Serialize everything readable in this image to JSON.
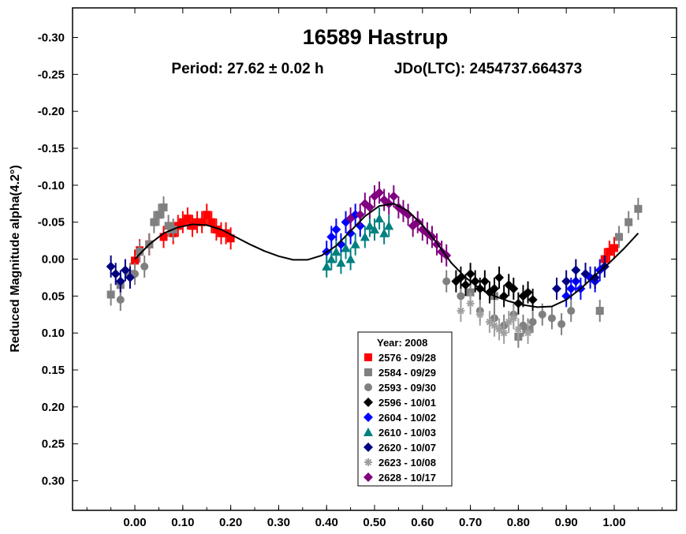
{
  "chart_data": {
    "type": "scatter",
    "title": "16589 Hastrup",
    "subtitle_period": "Period: 27.62 ± 0.02 h",
    "subtitle_epoch": "JDo(LTC): 2454737.664373",
    "xlabel": "",
    "ylabel": "Reduced Magnitude alpha(4.2°)",
    "xlim": [
      -0.13,
      1.13
    ],
    "ylim": [
      -0.34,
      0.34
    ],
    "y_inverted": true,
    "x_ticks": [
      0.0,
      0.1,
      0.2,
      0.3,
      0.4,
      0.5,
      0.6,
      0.7,
      0.8,
      0.9,
      1.0
    ],
    "x_tick_labels": [
      "0.00",
      "0.10",
      "0.20",
      "0.30",
      "0.40",
      "0.50",
      "0.60",
      "0.70",
      "0.80",
      "0.90",
      "1.00"
    ],
    "y_ticks": [
      -0.3,
      -0.25,
      -0.2,
      -0.15,
      -0.1,
      -0.05,
      0.0,
      0.05,
      0.1,
      0.15,
      0.2,
      0.25,
      0.3
    ],
    "y_tick_labels": [
      "-0.30",
      "-0.25",
      "-0.20",
      "-0.15",
      "-0.10",
      "-0.05",
      "0.00",
      "0.05",
      "0.10",
      "0.15",
      "0.20",
      "0.25",
      "0.30"
    ],
    "grid": false,
    "legend": {
      "placement": "bottom-center",
      "title": "Year: 2008",
      "entries": [
        {
          "label": "2576 - 09/28",
          "marker": "square",
          "color": "#ff0000"
        },
        {
          "label": "2584 - 09/29",
          "marker": "square",
          "color": "#808080"
        },
        {
          "label": "2593 - 09/30",
          "marker": "circle",
          "color": "#808080"
        },
        {
          "label": "2596 - 10/01",
          "marker": "diamond",
          "color": "#000000"
        },
        {
          "label": "2604 - 10/02",
          "marker": "diamond",
          "color": "#0000ff"
        },
        {
          "label": "2610 - 10/03",
          "marker": "triangle",
          "color": "#008080"
        },
        {
          "label": "2620 - 10/07",
          "marker": "diamond",
          "color": "#000080"
        },
        {
          "label": "2623 - 10/08",
          "marker": "asterisk",
          "color": "#a0a0a0"
        },
        {
          "label": "2628 - 10/17",
          "marker": "diamond",
          "color": "#800080"
        }
      ]
    },
    "fit_curve": {
      "color": "#000000",
      "points": [
        [
          0.0,
          0.0
        ],
        [
          0.03,
          -0.02
        ],
        [
          0.06,
          -0.035
        ],
        [
          0.09,
          -0.043
        ],
        [
          0.12,
          -0.047
        ],
        [
          0.15,
          -0.046
        ],
        [
          0.18,
          -0.04
        ],
        [
          0.21,
          -0.03
        ],
        [
          0.24,
          -0.02
        ],
        [
          0.27,
          -0.011
        ],
        [
          0.3,
          -0.004
        ],
        [
          0.33,
          0.001
        ],
        [
          0.36,
          0.001
        ],
        [
          0.39,
          -0.005
        ],
        [
          0.42,
          -0.018
        ],
        [
          0.45,
          -0.038
        ],
        [
          0.48,
          -0.058
        ],
        [
          0.51,
          -0.072
        ],
        [
          0.54,
          -0.075
        ],
        [
          0.57,
          -0.065
        ],
        [
          0.6,
          -0.046
        ],
        [
          0.63,
          -0.022
        ],
        [
          0.66,
          0.005
        ],
        [
          0.69,
          0.025
        ],
        [
          0.72,
          0.04
        ],
        [
          0.75,
          0.05
        ],
        [
          0.78,
          0.057
        ],
        [
          0.81,
          0.062
        ],
        [
          0.84,
          0.065
        ],
        [
          0.87,
          0.064
        ],
        [
          0.9,
          0.055
        ],
        [
          0.93,
          0.04
        ],
        [
          0.96,
          0.022
        ],
        [
          0.99,
          0.005
        ],
        [
          1.02,
          -0.014
        ],
        [
          1.05,
          -0.035
        ]
      ]
    },
    "series": [
      {
        "name": "2576 - 09/28",
        "marker": "square",
        "color": "#ff0000",
        "x": [
          0.0,
          0.01,
          0.03,
          0.06,
          0.08,
          0.09,
          0.1,
          0.11,
          0.12,
          0.13,
          0.14,
          0.15,
          0.16,
          0.17,
          0.18,
          0.19,
          0.2,
          0.98,
          0.99,
          1.0
        ],
        "y": [
          0.002,
          -0.012,
          -0.02,
          -0.03,
          -0.035,
          -0.045,
          -0.05,
          -0.055,
          -0.045,
          -0.05,
          -0.05,
          -0.06,
          -0.05,
          -0.04,
          -0.035,
          -0.035,
          -0.028,
          0.0,
          -0.01,
          -0.015
        ]
      },
      {
        "name": "2584 - 09/29",
        "marker": "square",
        "color": "#808080",
        "x": [
          -0.05,
          -0.03,
          -0.01,
          0.01,
          0.03,
          0.04,
          0.05,
          0.06,
          0.07,
          0.08,
          0.7,
          0.75,
          0.8,
          0.82,
          0.97,
          1.01,
          1.03,
          1.05
        ],
        "y": [
          0.048,
          0.035,
          0.02,
          -0.01,
          -0.02,
          -0.05,
          -0.06,
          -0.07,
          -0.045,
          -0.04,
          0.045,
          0.05,
          0.105,
          0.095,
          0.07,
          -0.03,
          -0.05,
          -0.068
        ]
      },
      {
        "name": "2593 - 09/30",
        "marker": "circle",
        "color": "#808080",
        "x": [
          -0.03,
          0.0,
          0.02,
          0.65,
          0.68,
          0.72,
          0.75,
          0.77,
          0.79,
          0.81,
          0.83,
          0.85,
          0.87,
          0.89,
          0.91
        ],
        "y": [
          0.055,
          0.02,
          0.01,
          0.03,
          0.05,
          0.07,
          0.08,
          0.09,
          0.075,
          0.09,
          0.085,
          0.075,
          0.08,
          0.088,
          0.07
        ]
      },
      {
        "name": "2596 - 10/01",
        "marker": "diamond",
        "color": "#000000",
        "x": [
          0.67,
          0.68,
          0.69,
          0.7,
          0.71,
          0.72,
          0.73,
          0.74,
          0.75,
          0.76,
          0.77,
          0.78,
          0.79,
          0.8,
          0.81,
          0.82,
          0.83
        ],
        "y": [
          0.03,
          0.025,
          0.035,
          0.02,
          0.03,
          0.04,
          0.03,
          0.045,
          0.04,
          0.025,
          0.05,
          0.035,
          0.04,
          0.06,
          0.05,
          0.045,
          0.055
        ]
      },
      {
        "name": "2604 - 10/02",
        "marker": "diamond",
        "color": "#0000ff",
        "x": [
          0.4,
          0.41,
          0.42,
          0.43,
          0.44,
          0.45,
          0.46,
          0.47,
          0.9,
          0.91,
          0.92,
          0.93,
          0.94,
          0.95,
          0.96,
          0.97
        ],
        "y": [
          -0.01,
          -0.03,
          -0.04,
          -0.02,
          -0.05,
          -0.035,
          -0.06,
          -0.045,
          0.05,
          0.04,
          0.03,
          0.04,
          0.02,
          0.025,
          0.03,
          0.015
        ]
      },
      {
        "name": "2610 - 10/03",
        "marker": "triangle",
        "color": "#008080",
        "x": [
          0.4,
          0.41,
          0.42,
          0.43,
          0.44,
          0.45,
          0.46,
          0.48,
          0.49,
          0.5,
          0.51,
          0.52,
          0.53
        ],
        "y": [
          0.01,
          0.0,
          -0.01,
          0.005,
          -0.015,
          0.0,
          -0.02,
          -0.03,
          -0.045,
          -0.04,
          -0.055,
          -0.035,
          -0.045
        ]
      },
      {
        "name": "2620 - 10/07",
        "marker": "diamond",
        "color": "#000080",
        "x": [
          -0.05,
          -0.04,
          -0.03,
          -0.02,
          -0.01,
          0.88,
          0.9,
          0.92,
          0.94,
          0.96,
          0.98
        ],
        "y": [
          0.01,
          0.02,
          0.03,
          0.015,
          0.025,
          0.04,
          0.03,
          0.015,
          0.02,
          0.025,
          0.01
        ]
      },
      {
        "name": "2623 - 10/08",
        "marker": "asterisk",
        "color": "#a0a0a0",
        "x": [
          0.68,
          0.7,
          0.72,
          0.74,
          0.75,
          0.76,
          0.77,
          0.78,
          0.79,
          0.8,
          0.82
        ],
        "y": [
          0.07,
          0.06,
          0.075,
          0.085,
          0.09,
          0.095,
          0.1,
          0.085,
          0.08,
          0.095,
          0.1
        ]
      },
      {
        "name": "2628 - 10/17",
        "marker": "diamond",
        "color": "#800080",
        "x": [
          0.45,
          0.47,
          0.48,
          0.49,
          0.5,
          0.51,
          0.52,
          0.53,
          0.54,
          0.55,
          0.56,
          0.57,
          0.58,
          0.59,
          0.6,
          0.61,
          0.62,
          0.63,
          0.64,
          0.65
        ],
        "y": [
          -0.055,
          -0.06,
          -0.075,
          -0.07,
          -0.085,
          -0.09,
          -0.08,
          -0.075,
          -0.085,
          -0.07,
          -0.065,
          -0.06,
          -0.045,
          -0.05,
          -0.04,
          -0.035,
          -0.03,
          -0.02,
          -0.01,
          -0.005
        ]
      }
    ]
  }
}
